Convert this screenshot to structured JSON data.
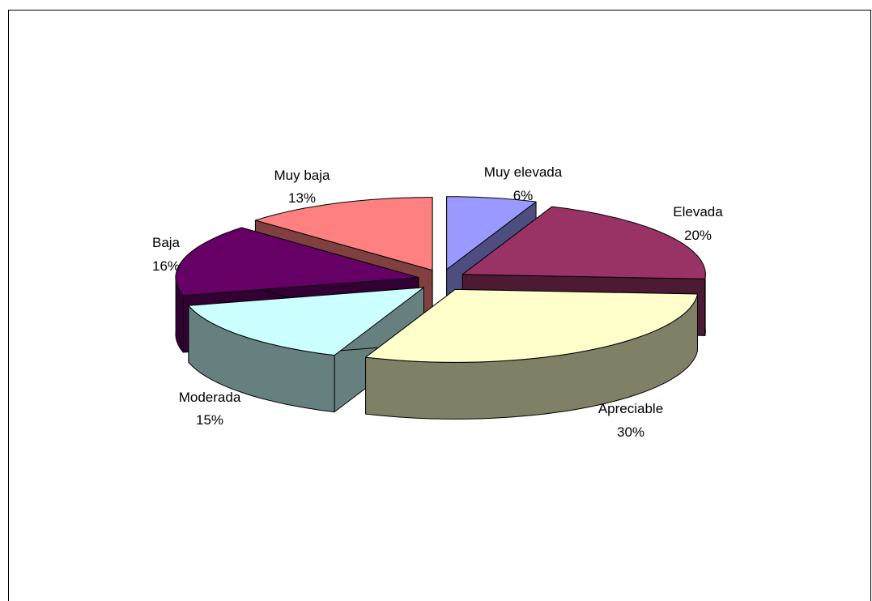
{
  "chart_data": {
    "type": "pie",
    "title": "",
    "slices": [
      {
        "label": "Muy elevada",
        "value": 6,
        "pct_label": "6%",
        "top": "#9999FF",
        "side": "#4D4D80"
      },
      {
        "label": "Elevada",
        "value": 20,
        "pct_label": "20%",
        "top": "#993366",
        "side": "#4D1A33"
      },
      {
        "label": "Apreciable",
        "value": 30,
        "pct_label": "30%",
        "top": "#FFFFCC",
        "side": "#808066"
      },
      {
        "label": "Moderada",
        "value": 15,
        "pct_label": "15%",
        "top": "#CCFFFF",
        "side": "#668080"
      },
      {
        "label": "Baja",
        "value": 16,
        "pct_label": "16%",
        "top": "#660066",
        "side": "#330033"
      },
      {
        "label": "Muy baja",
        "value": 13,
        "pct_label": "13%",
        "top": "#FF8080",
        "side": "#804040"
      }
    ],
    "legend": "none",
    "data_labels": "category and percentage"
  }
}
